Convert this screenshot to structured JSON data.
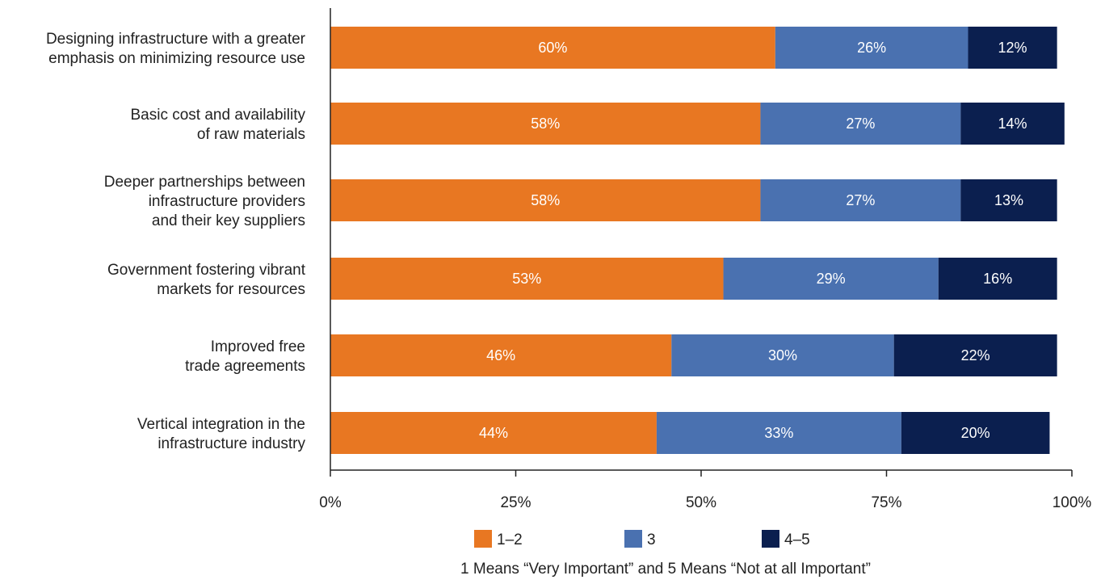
{
  "chart_data": {
    "type": "bar",
    "orientation": "horizontal",
    "stacked": true,
    "categories": [
      [
        "Designing infrastructure with a greater",
        "emphasis on minimizing resource use"
      ],
      [
        "Basic cost and availability",
        "of raw materials"
      ],
      [
        "Deeper partnerships between",
        "infrastructure providers",
        "and their key suppliers"
      ],
      [
        "Government fostering vibrant",
        "markets for resources"
      ],
      [
        "Improved free",
        "trade agreements"
      ],
      [
        "Vertical integration in the",
        "infrastructure industry"
      ]
    ],
    "series": [
      {
        "name": "1–2",
        "color": "#E87722",
        "values": [
          60,
          58,
          58,
          53,
          46,
          44
        ],
        "labels": [
          "60%",
          "58%",
          "58%",
          "53%",
          "46%",
          "44%"
        ]
      },
      {
        "name": "3",
        "color": "#4A71B0",
        "values": [
          26,
          27,
          27,
          29,
          30,
          33
        ],
        "labels": [
          "26%",
          "27%",
          "27%",
          "29%",
          "30%",
          "33%"
        ]
      },
      {
        "name": "4–5",
        "color": "#0B1F4F",
        "values": [
          12,
          14,
          13,
          16,
          22,
          20
        ],
        "labels": [
          "12%",
          "14%",
          "13%",
          "16%",
          "22%",
          "20%"
        ]
      }
    ],
    "xlim": [
      0,
      100
    ],
    "xticks": [
      0,
      25,
      50,
      75,
      100
    ],
    "xtick_labels": [
      "0%",
      "25%",
      "50%",
      "75%",
      "100%"
    ],
    "grid": false,
    "legend_position": "bottom",
    "note": "1 Means “Very Important” and 5 Means “Not at all Important”"
  }
}
